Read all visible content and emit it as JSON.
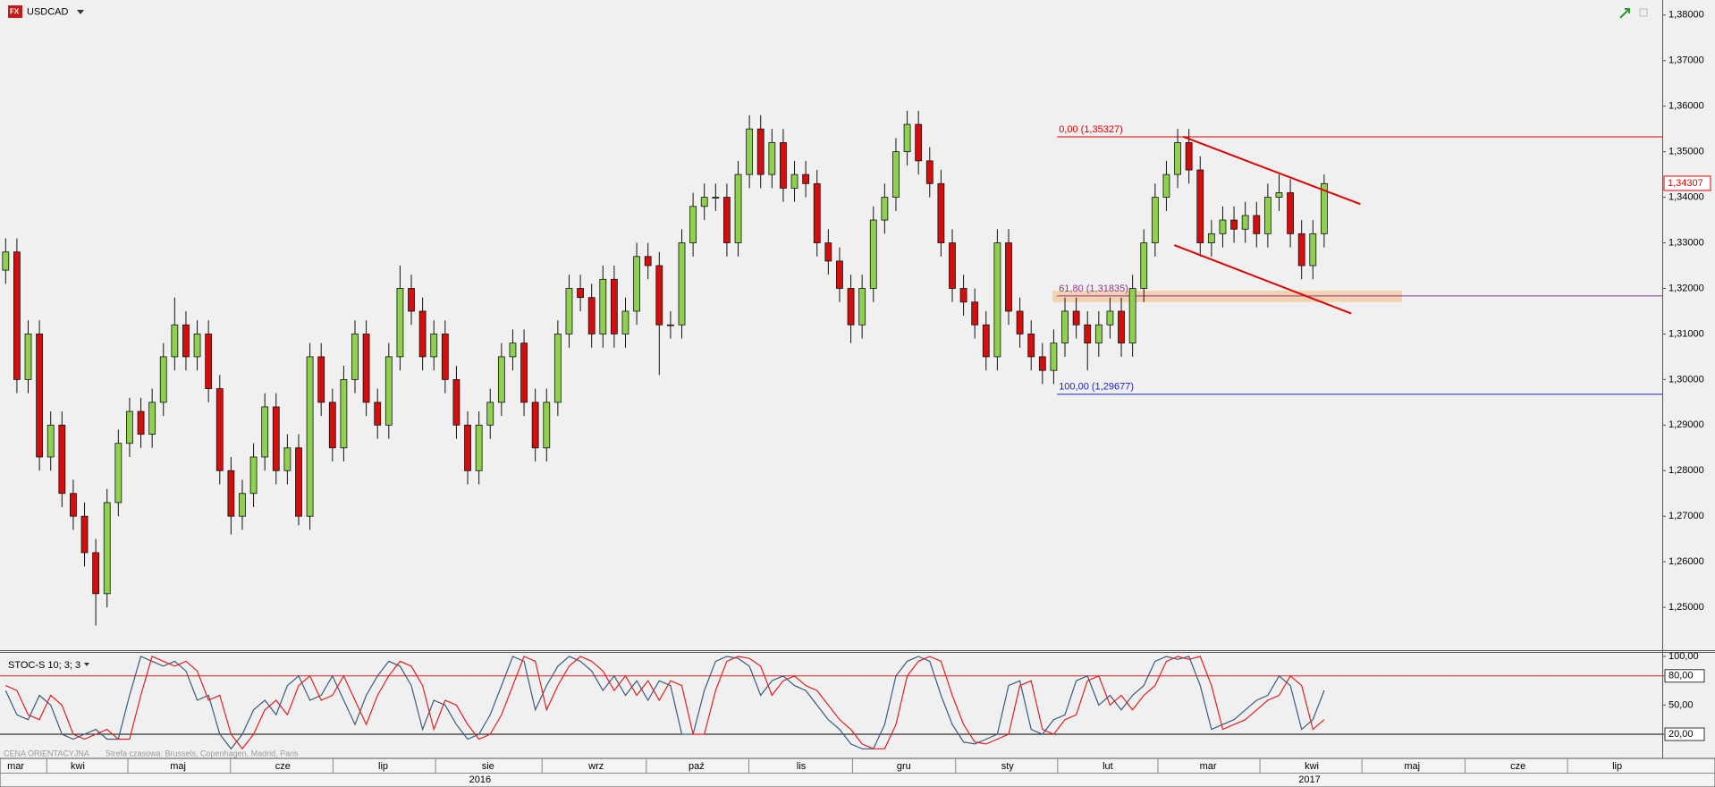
{
  "chart_data": [
    {
      "type": "candlestick",
      "title": "USDCAD",
      "open": [
        1.324,
        1.328,
        1.3,
        1.31,
        1.283,
        1.29,
        1.275,
        1.27,
        1.262,
        1.253,
        1.273,
        1.286,
        1.293,
        1.288,
        1.295,
        1.305,
        1.312,
        1.305,
        1.31,
        1.298,
        1.28,
        1.27,
        1.275,
        1.283,
        1.294,
        1.28,
        1.285,
        1.27,
        1.305,
        1.295,
        1.285,
        1.3,
        1.31,
        1.295,
        1.29,
        1.305,
        1.32,
        1.315,
        1.305,
        1.31,
        1.3,
        1.29,
        1.28,
        1.29,
        1.295,
        1.305,
        1.308,
        1.295,
        1.285,
        1.295,
        1.31,
        1.32,
        1.318,
        1.31,
        1.322,
        1.31,
        1.315,
        1.327,
        1.325,
        1.312,
        1.312,
        1.33,
        1.338,
        1.34,
        1.34,
        1.33,
        1.345,
        1.355,
        1.345,
        1.352,
        1.342,
        1.345,
        1.343,
        1.33,
        1.326,
        1.32,
        1.312,
        1.32,
        1.335,
        1.34,
        1.35,
        1.356,
        1.348,
        1.343,
        1.33,
        1.32,
        1.317,
        1.312,
        1.305,
        1.33,
        1.315,
        1.31,
        1.305,
        1.302,
        1.308,
        1.315,
        1.312,
        1.308,
        1.312,
        1.315,
        1.308,
        1.32,
        1.33,
        1.34,
        1.345,
        1.352,
        1.346,
        1.33,
        1.332,
        1.335,
        1.333,
        1.336,
        1.332,
        1.34,
        1.341,
        1.332,
        1.325,
        1.332
      ],
      "high": [
        1.331,
        1.331,
        1.313,
        1.313,
        1.293,
        1.293,
        1.278,
        1.273,
        1.265,
        1.276,
        1.289,
        1.296,
        1.296,
        1.298,
        1.308,
        1.318,
        1.315,
        1.313,
        1.313,
        1.301,
        1.283,
        1.278,
        1.286,
        1.297,
        1.297,
        1.288,
        1.288,
        1.308,
        1.308,
        1.298,
        1.303,
        1.313,
        1.313,
        1.298,
        1.308,
        1.325,
        1.323,
        1.318,
        1.313,
        1.313,
        1.303,
        1.293,
        1.293,
        1.298,
        1.308,
        1.311,
        1.311,
        1.298,
        1.298,
        1.313,
        1.323,
        1.323,
        1.321,
        1.325,
        1.325,
        1.318,
        1.33,
        1.33,
        1.328,
        1.315,
        1.333,
        1.341,
        1.343,
        1.343,
        1.343,
        1.348,
        1.358,
        1.358,
        1.355,
        1.355,
        1.348,
        1.348,
        1.346,
        1.333,
        1.329,
        1.323,
        1.323,
        1.338,
        1.343,
        1.353,
        1.359,
        1.359,
        1.351,
        1.346,
        1.333,
        1.323,
        1.32,
        1.315,
        1.333,
        1.333,
        1.318,
        1.313,
        1.308,
        1.311,
        1.318,
        1.318,
        1.315,
        1.315,
        1.318,
        1.318,
        1.323,
        1.333,
        1.343,
        1.348,
        1.355,
        1.355,
        1.349,
        1.335,
        1.338,
        1.338,
        1.339,
        1.339,
        1.343,
        1.345,
        1.344,
        1.335,
        1.335,
        1.345
      ],
      "low": [
        1.321,
        1.297,
        1.297,
        1.28,
        1.28,
        1.272,
        1.267,
        1.259,
        1.246,
        1.25,
        1.27,
        1.283,
        1.285,
        1.285,
        1.292,
        1.302,
        1.302,
        1.302,
        1.295,
        1.277,
        1.266,
        1.267,
        1.272,
        1.28,
        1.277,
        1.277,
        1.268,
        1.267,
        1.292,
        1.282,
        1.282,
        1.297,
        1.292,
        1.287,
        1.287,
        1.302,
        1.312,
        1.302,
        1.302,
        1.297,
        1.287,
        1.277,
        1.277,
        1.287,
        1.292,
        1.302,
        1.292,
        1.282,
        1.282,
        1.292,
        1.307,
        1.315,
        1.307,
        1.307,
        1.307,
        1.307,
        1.312,
        1.322,
        1.301,
        1.309,
        1.309,
        1.327,
        1.335,
        1.337,
        1.327,
        1.327,
        1.342,
        1.342,
        1.342,
        1.339,
        1.339,
        1.34,
        1.327,
        1.323,
        1.317,
        1.308,
        1.309,
        1.317,
        1.332,
        1.337,
        1.347,
        1.345,
        1.34,
        1.327,
        1.317,
        1.314,
        1.309,
        1.302,
        1.302,
        1.312,
        1.307,
        1.302,
        1.299,
        1.299,
        1.305,
        1.309,
        1.302,
        1.305,
        1.309,
        1.305,
        1.305,
        1.317,
        1.327,
        1.337,
        1.342,
        1.343,
        1.327,
        1.327,
        1.329,
        1.33,
        1.33,
        1.329,
        1.329,
        1.337,
        1.329,
        1.322,
        1.322,
        1.329
      ],
      "close": [
        1.328,
        1.3,
        1.31,
        1.283,
        1.29,
        1.275,
        1.27,
        1.262,
        1.253,
        1.273,
        1.286,
        1.293,
        1.288,
        1.295,
        1.305,
        1.312,
        1.305,
        1.31,
        1.298,
        1.28,
        1.27,
        1.275,
        1.283,
        1.294,
        1.28,
        1.285,
        1.27,
        1.305,
        1.295,
        1.285,
        1.3,
        1.31,
        1.295,
        1.29,
        1.305,
        1.32,
        1.315,
        1.305,
        1.31,
        1.3,
        1.29,
        1.28,
        1.29,
        1.295,
        1.305,
        1.308,
        1.295,
        1.285,
        1.295,
        1.31,
        1.32,
        1.318,
        1.31,
        1.322,
        1.31,
        1.315,
        1.327,
        1.325,
        1.312,
        1.312,
        1.33,
        1.338,
        1.34,
        1.34,
        1.33,
        1.345,
        1.355,
        1.345,
        1.352,
        1.342,
        1.345,
        1.343,
        1.33,
        1.326,
        1.32,
        1.312,
        1.32,
        1.335,
        1.34,
        1.35,
        1.356,
        1.348,
        1.343,
        1.33,
        1.32,
        1.317,
        1.312,
        1.305,
        1.33,
        1.315,
        1.31,
        1.305,
        1.302,
        1.308,
        1.315,
        1.312,
        1.308,
        1.312,
        1.315,
        1.308,
        1.32,
        1.33,
        1.34,
        1.345,
        1.352,
        1.346,
        1.33,
        1.332,
        1.335,
        1.333,
        1.336,
        1.332,
        1.34,
        1.341,
        1.332,
        1.325,
        1.332,
        1.343
      ],
      "up_color": "#8fd14f",
      "down_color": "#d40d0d",
      "xlim": [
        -0.5,
        147
      ],
      "xticks": [
        {
          "value": 0.9,
          "label": "mar"
        },
        {
          "value": 6.4,
          "label": "kwi"
        },
        {
          "value": 15.3,
          "label": "maj"
        },
        {
          "value": 24.6,
          "label": "cze"
        },
        {
          "value": 33.5,
          "label": "lip"
        },
        {
          "value": 42.8,
          "label": "sie"
        },
        {
          "value": 52.4,
          "label": "wrz"
        },
        {
          "value": 61.3,
          "label": "paź"
        },
        {
          "value": 70.6,
          "label": "lis"
        },
        {
          "value": 79.7,
          "label": "gru"
        },
        {
          "value": 88.9,
          "label": "sty"
        },
        {
          "value": 97.8,
          "label": "lut"
        },
        {
          "value": 106.7,
          "label": "mar"
        },
        {
          "value": 115.9,
          "label": "kwi"
        },
        {
          "value": 124.8,
          "label": "maj"
        },
        {
          "value": 134.2,
          "label": "cze"
        },
        {
          "value": 143.0,
          "label": "lip"
        }
      ],
      "year_ticks": [
        {
          "value": 42.1,
          "label": "2016"
        },
        {
          "value": 115.7,
          "label": "2017"
        }
      ],
      "ylim": [
        1.2406,
        1.3833
      ],
      "yticks": [
        {
          "value": 1.25,
          "label": "1,25000"
        },
        {
          "value": 1.26,
          "label": "1,26000"
        },
        {
          "value": 1.27,
          "label": "1,27000"
        },
        {
          "value": 1.28,
          "label": "1,28000"
        },
        {
          "value": 1.29,
          "label": "1,29000"
        },
        {
          "value": 1.3,
          "label": "1,30000"
        },
        {
          "value": 1.31,
          "label": "1,31000"
        },
        {
          "value": 1.32,
          "label": "1,32000"
        },
        {
          "value": 1.33,
          "label": "1,33000"
        },
        {
          "value": 1.34,
          "label": "1,34000"
        },
        {
          "value": 1.35,
          "label": "1,35000"
        },
        {
          "value": 1.36,
          "label": "1,36000"
        },
        {
          "value": 1.37,
          "label": "1,37000"
        },
        {
          "value": 1.38,
          "label": "1,38000"
        }
      ],
      "last_price": {
        "value": 1.34307,
        "label": "1,34307"
      },
      "fib_start": 93.3,
      "fib_levels": [
        {
          "value": 1.35327,
          "label": "0,00 (1,35327)",
          "color": "#e00000"
        },
        {
          "value": 1.31835,
          "label": "61,80 (1,31835)",
          "color": "#8b3a8b"
        },
        {
          "value": 1.29677,
          "label": "100,00 (1,29677)",
          "color": "#2020c0"
        }
      ],
      "band": {
        "x": [
          92.9,
          123.9
        ],
        "y": [
          1.317,
          1.3195
        ],
        "color": "#f5c89a"
      },
      "trendlines": [
        {
          "x": [
            104.5,
            120.2
          ],
          "y": [
            1.3533,
            1.3385
          ]
        },
        {
          "x": [
            103.7,
            119.4
          ],
          "y": [
            1.3295,
            1.3145
          ]
        }
      ],
      "trend_color": "#e00000"
    },
    {
      "type": "line",
      "title": "STOC-S 10; 3; 3",
      "xlim": [
        -0.5,
        147
      ],
      "ylim": [
        -4.8,
        104.6
      ],
      "yticks": [
        {
          "value": 100,
          "label": "100,00"
        },
        {
          "value": 80,
          "label": "80,00"
        },
        {
          "value": 50,
          "label": "50,00"
        },
        {
          "value": 20,
          "label": "20,00"
        }
      ],
      "levels": [
        {
          "value": 80,
          "color": "#e02020"
        },
        {
          "value": 20,
          "color": "#000000"
        }
      ],
      "annotations": [
        "CENA ORIENTACYJNA",
        "Strefa czasowa: Brussels, Copenhagen, Madrid, Paris"
      ],
      "series": [
        {
          "color": "#3c5a7a",
          "values": [
            65,
            40,
            35,
            60,
            50,
            20,
            15,
            20,
            25,
            15,
            15,
            60,
            100,
            95,
            90,
            95,
            85,
            55,
            60,
            20,
            5,
            20,
            45,
            55,
            40,
            70,
            80,
            55,
            60,
            80,
            55,
            30,
            60,
            80,
            95,
            90,
            70,
            25,
            55,
            50,
            30,
            15,
            20,
            40,
            70,
            100,
            95,
            45,
            70,
            90,
            100,
            95,
            85,
            65,
            80,
            60,
            75,
            55,
            75,
            70,
            20,
            20,
            65,
            95,
            100,
            98,
            90,
            60,
            75,
            80,
            70,
            65,
            50,
            35,
            25,
            10,
            5,
            5,
            30,
            80,
            95,
            100,
            95,
            60,
            30,
            12,
            10,
            15,
            20,
            70,
            75,
            25,
            20,
            35,
            40,
            75,
            80,
            50,
            60,
            45,
            60,
            70,
            95,
            100,
            97,
            100,
            70,
            25,
            30,
            35,
            45,
            55,
            60,
            80,
            70,
            25,
            35,
            65
          ]
        },
        {
          "color": "#e02020",
          "values": [
            70,
            65,
            40,
            35,
            60,
            50,
            20,
            15,
            20,
            25,
            15,
            15,
            60,
            100,
            95,
            90,
            95,
            85,
            55,
            60,
            20,
            5,
            20,
            45,
            55,
            40,
            70,
            80,
            55,
            60,
            80,
            55,
            30,
            60,
            80,
            95,
            90,
            70,
            25,
            55,
            50,
            30,
            15,
            20,
            40,
            70,
            100,
            95,
            45,
            70,
            90,
            100,
            95,
            85,
            65,
            80,
            60,
            75,
            55,
            75,
            70,
            20,
            20,
            65,
            95,
            100,
            98,
            90,
            60,
            75,
            80,
            70,
            65,
            50,
            35,
            25,
            10,
            5,
            5,
            30,
            80,
            95,
            100,
            95,
            60,
            30,
            12,
            10,
            15,
            20,
            70,
            75,
            25,
            20,
            35,
            40,
            75,
            80,
            50,
            60,
            45,
            60,
            70,
            95,
            100,
            97,
            100,
            70,
            25,
            30,
            35,
            45,
            55,
            60,
            80,
            70,
            25,
            35
          ]
        }
      ]
    }
  ]
}
